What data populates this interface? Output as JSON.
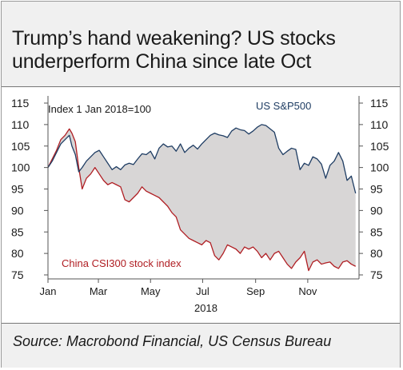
{
  "title_line1": "Trump’s hand weakening? US stocks",
  "title_line2": "underperform China since late Oct",
  "source": "Source: Macrobond Financial, US Census Bureau",
  "colors": {
    "us": "#1f3d63",
    "china": "#b01e23",
    "fill": "#d8d6d6",
    "text": "#1a1a1a"
  },
  "chart_data": {
    "type": "line",
    "annotation": "Index 1 Jan 2018=100",
    "year_label": "2018",
    "ylim": [
      75,
      115
    ],
    "y_ticks": [
      115,
      110,
      105,
      100,
      95,
      90,
      85,
      80,
      75
    ],
    "x_ticks": [
      {
        "label": "Jan",
        "day": 0
      },
      {
        "label": "Mar",
        "day": 59
      },
      {
        "label": "May",
        "day": 120
      },
      {
        "label": "Jul",
        "day": 181
      },
      {
        "label": "Sep",
        "day": 243
      },
      {
        "label": "Nov",
        "day": 304
      }
    ],
    "grid": false,
    "series": [
      {
        "name": "US S&P500",
        "x": [
          0,
          5,
          10,
          15,
          20,
          25,
          28,
          32,
          36,
          40,
          45,
          50,
          55,
          60,
          65,
          70,
          75,
          80,
          85,
          90,
          95,
          100,
          105,
          110,
          115,
          120,
          125,
          130,
          135,
          140,
          145,
          150,
          155,
          160,
          165,
          170,
          175,
          180,
          185,
          190,
          195,
          200,
          205,
          210,
          215,
          220,
          225,
          230,
          235,
          240,
          245,
          250,
          255,
          260,
          265,
          270,
          275,
          280,
          285,
          290,
          295,
          300,
          305,
          310,
          315,
          320,
          325,
          330,
          335,
          340,
          345,
          350,
          355,
          360
        ],
        "y": [
          100,
          101.5,
          103.5,
          105.5,
          106.5,
          107.5,
          105,
          103,
          99,
          100,
          101.5,
          102.5,
          103.5,
          104,
          102.5,
          101,
          99.5,
          100.2,
          99.5,
          100.6,
          101,
          100.7,
          102,
          103.2,
          103,
          103.8,
          102,
          104.5,
          105.5,
          104.8,
          105,
          103.8,
          105.5,
          103.5,
          104.5,
          105.2,
          104.3,
          105.5,
          106.5,
          107.5,
          108,
          107.6,
          107.4,
          107,
          108.5,
          109.2,
          108.8,
          108.6,
          107.8,
          108.5,
          109.4,
          110,
          109.8,
          109,
          108.2,
          104.5,
          103,
          103.8,
          104.5,
          104.2,
          99.5,
          101,
          100.5,
          102.5,
          102,
          100.8,
          97.5,
          100.5,
          101.5,
          103.5,
          101.5,
          97,
          98,
          94
        ]
      },
      {
        "name": "China CSI300 stock index",
        "x": [
          0,
          5,
          10,
          15,
          20,
          25,
          28,
          32,
          36,
          40,
          45,
          50,
          55,
          60,
          65,
          70,
          75,
          80,
          85,
          90,
          95,
          100,
          105,
          110,
          115,
          120,
          125,
          130,
          135,
          140,
          145,
          150,
          155,
          160,
          165,
          170,
          175,
          180,
          185,
          190,
          195,
          200,
          205,
          210,
          215,
          220,
          225,
          230,
          235,
          240,
          245,
          250,
          255,
          260,
          265,
          270,
          275,
          280,
          285,
          290,
          295,
          300,
          305,
          310,
          315,
          320,
          325,
          330,
          335,
          340,
          345,
          350,
          355,
          360
        ],
        "y": [
          100,
          102,
          104,
          106.5,
          107.5,
          109,
          108,
          106,
          100,
          95,
          97.5,
          98.5,
          100,
          98.5,
          97,
          96,
          96.5,
          96,
          95.5,
          92.5,
          92,
          93,
          94,
          95.5,
          94.5,
          94,
          93.5,
          93,
          92,
          91,
          89.5,
          88.5,
          85.5,
          84.5,
          83.5,
          83,
          82.5,
          82,
          83,
          82.5,
          79.5,
          78.5,
          80,
          82,
          81.5,
          81,
          80,
          81.5,
          81,
          81.5,
          80.5,
          79,
          80,
          78.5,
          80,
          80.5,
          79,
          77.5,
          76.5,
          78,
          79,
          80.5,
          76,
          78,
          78.5,
          77.5,
          77.8,
          78,
          77,
          76.5,
          78,
          78.3,
          77.5,
          77
        ]
      }
    ]
  }
}
